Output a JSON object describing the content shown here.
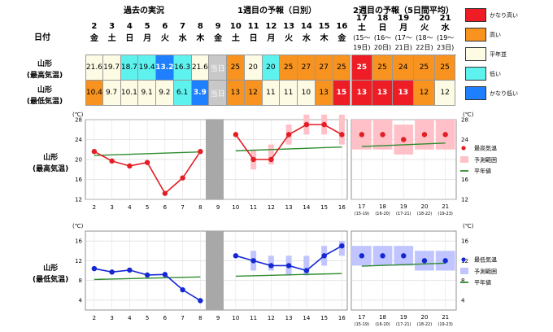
{
  "header": {
    "past_title": "過去の実況",
    "week1_title": "1週目の予報（日別）",
    "week2_title": "2週目の予報（5日間平均）",
    "date_label": "日付"
  },
  "dates": [
    {
      "day": "2",
      "wd": "金"
    },
    {
      "day": "3",
      "wd": "土"
    },
    {
      "day": "4",
      "wd": "日"
    },
    {
      "day": "5",
      "wd": "月"
    },
    {
      "day": "6",
      "wd": "火"
    },
    {
      "day": "7",
      "wd": "水"
    },
    {
      "day": "8",
      "wd": "木"
    },
    {
      "day": "9",
      "wd": "金"
    },
    {
      "day": "10",
      "wd": "土"
    },
    {
      "day": "11",
      "wd": "日"
    },
    {
      "day": "12",
      "wd": "月"
    },
    {
      "day": "13",
      "wd": "火"
    },
    {
      "day": "14",
      "wd": "水"
    },
    {
      "day": "15",
      "wd": "木"
    },
    {
      "day": "16",
      "wd": "金"
    }
  ],
  "week2_dates": [
    {
      "day": "17",
      "wd": "土",
      "range": "(15〜",
      "range2": "19日)"
    },
    {
      "day": "18",
      "wd": "日",
      "range": "(16〜",
      "range2": "20日)"
    },
    {
      "day": "19",
      "wd": "月",
      "range": "(17〜",
      "range2": "21日)"
    },
    {
      "day": "20",
      "wd": "火",
      "range": "(18〜",
      "range2": "22日)"
    },
    {
      "day": "21",
      "wd": "水",
      "range": "(19〜",
      "range2": "23日)"
    }
  ],
  "rows": {
    "max_label_1": "山形",
    "max_label_2": "(最高気温)",
    "min_label_1": "山形",
    "min_label_2": "(最低気温)"
  },
  "table": {
    "max": [
      "21.6",
      "19.7",
      "18.7",
      "19.4",
      "13.2",
      "16.3",
      "21.6",
      "当日",
      "25",
      "20",
      "20",
      "25",
      "27",
      "27",
      "25",
      "25",
      "25",
      "24",
      "25",
      "25"
    ],
    "max_cls": [
      "n",
      "n",
      "lo",
      "lo",
      "vlo",
      "lo",
      "n",
      "today",
      "hi",
      "n",
      "lo",
      "hi",
      "hi",
      "hi",
      "hi",
      "vhi",
      "hi",
      "hi",
      "hi",
      "hi"
    ],
    "min": [
      "10.4",
      "9.7",
      "10.1",
      "9.1",
      "9.2",
      "6.1",
      "3.9",
      "当日",
      "13",
      "12",
      "11",
      "11",
      "10",
      "13",
      "15",
      "13",
      "13",
      "13",
      "12",
      "12"
    ],
    "min_cls": [
      "hi",
      "n",
      "n",
      "n",
      "n",
      "lo",
      "vlo",
      "today",
      "hi",
      "hi",
      "n",
      "n",
      "n",
      "hi",
      "vhi",
      "vhi",
      "vhi",
      "vhi",
      "hi",
      "n"
    ]
  },
  "legend_table": [
    {
      "label": "かなり高い",
      "color": "#ee1c25"
    },
    {
      "label": "高い",
      "color": "#f7931e"
    },
    {
      "label": "平年並",
      "color": "#fdfbe4"
    },
    {
      "label": "低い",
      "color": "#5ef2ef"
    },
    {
      "label": "かなり低い",
      "color": "#1e80ff"
    }
  ],
  "colors": {
    "vhi": "#ee1c25",
    "hi": "#f7931e",
    "n": "#fdfbe4",
    "lo": "#5ef2ef",
    "vlo": "#1e80ff",
    "today": "#c8c8c8",
    "max_line": "#e31e24",
    "min_line": "#1428d2",
    "normal_line": "#2e8b2e",
    "max_range": "#ffc0c8",
    "min_range": "#c0c4ff"
  },
  "chart_legend": {
    "max_dot": "最高気温",
    "max_range": "予測範囲",
    "normal": "平年値",
    "min_dot": "最低気温",
    "min_range": "予測範囲",
    "normal2": "平年値"
  },
  "unit": "(℃)",
  "chart_data": [
    {
      "type": "line",
      "title": "山形 (最高気温)",
      "x": [
        2,
        3,
        4,
        5,
        6,
        7,
        8,
        10,
        11,
        12,
        13,
        14,
        15,
        16
      ],
      "values": [
        21.6,
        19.7,
        18.7,
        19.4,
        13.2,
        16.3,
        21.6,
        25,
        20,
        20,
        25,
        27,
        27,
        25
      ],
      "range_low": [
        null,
        null,
        null,
        null,
        null,
        null,
        null,
        null,
        18,
        19,
        23,
        25,
        25,
        23
      ],
      "range_high": [
        null,
        null,
        null,
        null,
        null,
        null,
        null,
        null,
        22,
        23,
        27,
        29,
        29,
        29
      ],
      "normal_start": 20.8,
      "normal_end": 22.5,
      "week2_categories": [
        "17\n(15-19)",
        "18\n(16-20)",
        "19\n(17-21)",
        "20\n(18-22)",
        "21\n(19-23)"
      ],
      "week2_values": [
        25,
        25,
        24,
        25,
        25
      ],
      "week2_range_low": [
        22,
        22,
        21,
        22,
        22
      ],
      "week2_range_high": [
        28,
        28,
        27,
        28,
        28
      ],
      "week2_normal": [
        22.6,
        23.3
      ],
      "ylim": [
        12,
        28
      ],
      "yticks": [
        12,
        16,
        20,
        24,
        28
      ]
    },
    {
      "type": "line",
      "title": "山形 (最低気温)",
      "x": [
        2,
        3,
        4,
        5,
        6,
        7,
        8,
        10,
        11,
        12,
        13,
        14,
        15,
        16
      ],
      "values": [
        10.4,
        9.7,
        10.1,
        9.1,
        9.2,
        6.1,
        3.9,
        13,
        12,
        11,
        11,
        10,
        13,
        15
      ],
      "range_low": [
        null,
        null,
        null,
        null,
        null,
        null,
        null,
        null,
        10,
        10,
        9,
        9,
        11,
        13
      ],
      "range_high": [
        null,
        null,
        null,
        null,
        null,
        null,
        null,
        null,
        14,
        13,
        13,
        13,
        15,
        16
      ],
      "normal_start": 8.2,
      "normal_end": 9.4,
      "week2_categories": [
        "17\n(15-19)",
        "18\n(16-20)",
        "19\n(17-21)",
        "20\n(18-22)",
        "21\n(19-23)"
      ],
      "week2_values": [
        13,
        13,
        13,
        12,
        12
      ],
      "week2_range_low": [
        11,
        11,
        11,
        10,
        10
      ],
      "week2_range_high": [
        15,
        15,
        15,
        14,
        14
      ],
      "week2_normal": [
        10.9,
        11.5
      ],
      "ylim": [
        2,
        18
      ],
      "yticks": [
        4,
        8,
        12,
        16
      ]
    }
  ],
  "xticks_week2": [
    {
      "d": "17",
      "r": "(15-19)"
    },
    {
      "d": "18",
      "r": "(16-20)"
    },
    {
      "d": "19",
      "r": "(17-21)"
    },
    {
      "d": "20",
      "r": "(18-22)"
    },
    {
      "d": "21",
      "r": "(19-23)"
    }
  ]
}
